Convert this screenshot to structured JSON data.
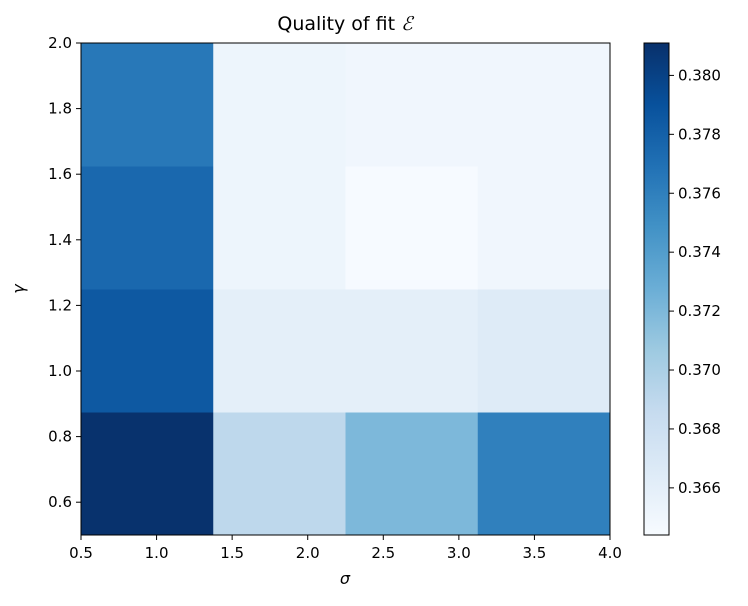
{
  "chart_data": {
    "type": "heatmap",
    "title": "Quality of fit ",
    "title_symbol": "ℰ",
    "xlabel": "σ",
    "ylabel": "γ",
    "xlim": [
      0.5,
      4.0
    ],
    "ylim": [
      0.5,
      2.0
    ],
    "x_edges": [
      0.5,
      1.375,
      2.25,
      3.125,
      4.0
    ],
    "y_edges": [
      0.5,
      0.875,
      1.25,
      1.625,
      2.0
    ],
    "x_ticks": [
      "0.5",
      "1.0",
      "1.5",
      "2.0",
      "2.5",
      "3.0",
      "3.5",
      "4.0"
    ],
    "x_tick_values": [
      0.5,
      1.0,
      1.5,
      2.0,
      2.5,
      3.0,
      3.5,
      4.0
    ],
    "y_ticks": [
      "0.6",
      "0.8",
      "1.0",
      "1.2",
      "1.4",
      "1.6",
      "1.8",
      "2.0"
    ],
    "y_tick_values": [
      0.6,
      0.8,
      1.0,
      1.2,
      1.4,
      1.6,
      1.8,
      2.0
    ],
    "values": [
      [
        0.381,
        0.369,
        0.372,
        0.376
      ],
      [
        0.3785,
        0.366,
        0.366,
        0.3665
      ],
      [
        0.3775,
        0.3652,
        0.3645,
        0.365
      ],
      [
        0.3765,
        0.3652,
        0.365,
        0.365
      ]
    ],
    "colorbar": {
      "vmin": 0.3644,
      "vmax": 0.3811,
      "ticks": [
        "0.366",
        "0.368",
        "0.370",
        "0.372",
        "0.374",
        "0.376",
        "0.378",
        "0.380"
      ],
      "tick_values": [
        0.366,
        0.368,
        0.37,
        0.372,
        0.374,
        0.376,
        0.378,
        0.38
      ],
      "colormap": "Blues"
    },
    "grid": false
  }
}
